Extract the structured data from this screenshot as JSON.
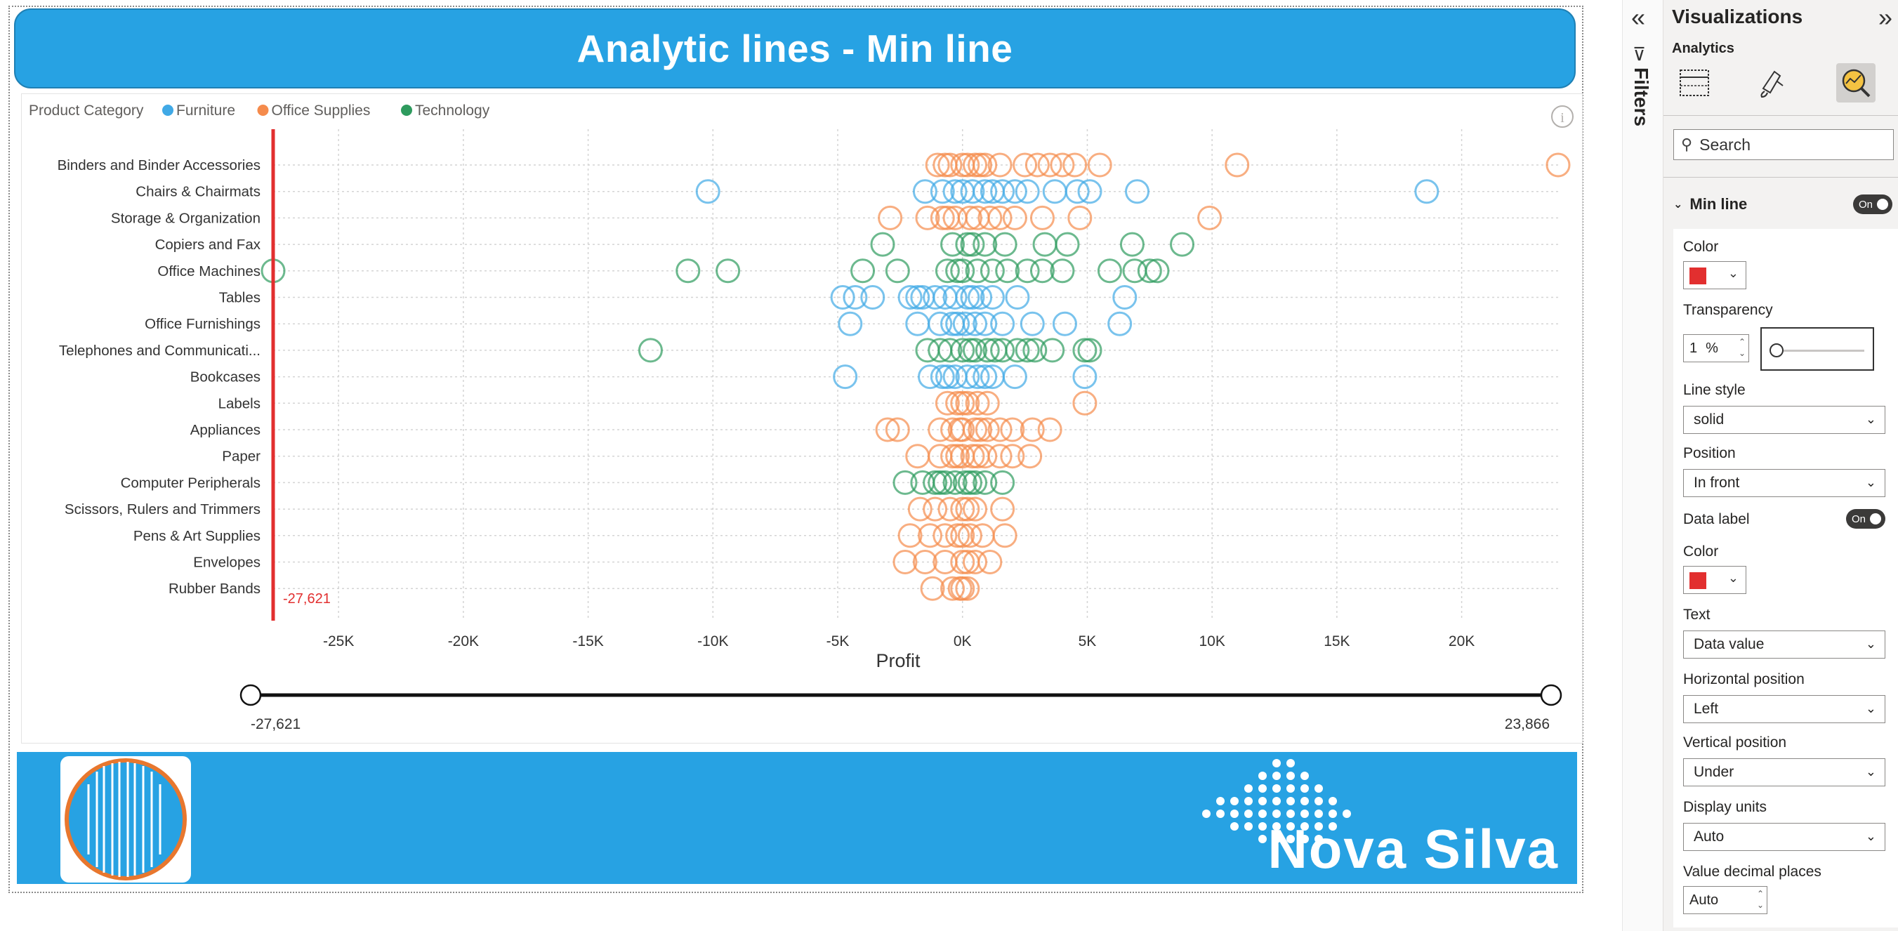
{
  "report": {
    "title": "Analytic lines - Min line",
    "brand": "Nova Silva"
  },
  "chart_data": {
    "type": "scatter",
    "legend_title": "Product Category",
    "legend": [
      {
        "name": "Furniture",
        "color": "#40a9e6"
      },
      {
        "name": "Office Supplies",
        "color": "#f58b4c"
      },
      {
        "name": "Technology",
        "color": "#2e9b5e"
      }
    ],
    "categories": [
      "Binders and Binder Accessories",
      "Chairs & Chairmats",
      "Storage & Organization",
      "Copiers and Fax",
      "Office Machines",
      "Tables",
      "Office Furnishings",
      "Telephones and Communicati...",
      "Bookcases",
      "Labels",
      "Appliances",
      "Paper",
      "Computer Peripherals",
      "Scissors, Rulers and Trimmers",
      "Pens & Art Supplies",
      "Envelopes",
      "Rubber Bands"
    ],
    "category_series": [
      "Office Supplies",
      "Furniture",
      "Office Supplies",
      "Technology",
      "Technology",
      "Furniture",
      "Furniture",
      "Technology",
      "Furniture",
      "Office Supplies",
      "Office Supplies",
      "Office Supplies",
      "Technology",
      "Office Supplies",
      "Office Supplies",
      "Office Supplies",
      "Office Supplies"
    ],
    "xlabel": "Profit",
    "x_ticks": [
      "-25K",
      "-20K",
      "-15K",
      "-10K",
      "-5K",
      "0K",
      "5K",
      "10K",
      "15K",
      "20K"
    ],
    "x_tick_values": [
      -25000,
      -20000,
      -15000,
      -10000,
      -5000,
      0,
      5000,
      10000,
      15000,
      20000
    ],
    "xlim": [
      -27621,
      23866
    ],
    "min_line": {
      "value": -27621,
      "label": "-27,621",
      "color": "#e22f2f"
    },
    "points": [
      [
        [
          -1000,
          0
        ],
        [
          -500,
          0
        ],
        [
          0,
          0
        ],
        [
          500,
          0
        ],
        [
          900,
          0
        ],
        [
          1500,
          0
        ],
        [
          2500,
          0
        ],
        [
          3500,
          0
        ],
        [
          4500,
          0
        ],
        [
          5500,
          0
        ],
        [
          11000,
          0
        ],
        [
          23866,
          0
        ],
        [
          -700,
          0
        ],
        [
          200,
          0
        ],
        [
          700,
          0
        ],
        [
          3000,
          0
        ],
        [
          4000,
          0
        ]
      ],
      [
        [
          -10200,
          0
        ],
        [
          -1500,
          0
        ],
        [
          -800,
          0
        ],
        [
          0,
          0
        ],
        [
          400,
          0
        ],
        [
          900,
          0
        ],
        [
          1600,
          0
        ],
        [
          2600,
          0
        ],
        [
          3700,
          0
        ],
        [
          4600,
          0
        ],
        [
          5100,
          0
        ],
        [
          7000,
          0
        ],
        [
          18600,
          0
        ],
        [
          -300,
          0
        ],
        [
          1200,
          0
        ],
        [
          2100,
          0
        ]
      ],
      [
        [
          -2900,
          0
        ],
        [
          -1400,
          0
        ],
        [
          -800,
          0
        ],
        [
          -300,
          0
        ],
        [
          300,
          0
        ],
        [
          1100,
          0
        ],
        [
          2100,
          0
        ],
        [
          3200,
          0
        ],
        [
          4700,
          0
        ],
        [
          9900,
          0
        ],
        [
          -600,
          0
        ],
        [
          600,
          0
        ],
        [
          1500,
          0
        ]
      ],
      [
        [
          -3200,
          0
        ],
        [
          -400,
          0
        ],
        [
          400,
          0
        ],
        [
          1700,
          0
        ],
        [
          3300,
          0
        ],
        [
          4200,
          0
        ],
        [
          6800,
          0
        ],
        [
          8800,
          0
        ],
        [
          200,
          0
        ],
        [
          900,
          0
        ]
      ],
      [
        [
          -27621,
          0
        ],
        [
          -11000,
          0
        ],
        [
          -9400,
          0
        ],
        [
          -4000,
          0
        ],
        [
          -2600,
          0
        ],
        [
          -600,
          0
        ],
        [
          0,
          0
        ],
        [
          600,
          0
        ],
        [
          1200,
          0
        ],
        [
          2600,
          0
        ],
        [
          3200,
          0
        ],
        [
          4000,
          0
        ],
        [
          5900,
          0
        ],
        [
          6900,
          0
        ],
        [
          7500,
          0
        ],
        [
          7800,
          0
        ],
        [
          1800,
          0
        ],
        [
          -200,
          0
        ]
      ],
      [
        [
          -4800,
          0
        ],
        [
          -3600,
          0
        ],
        [
          -2100,
          0
        ],
        [
          -1600,
          0
        ],
        [
          -1100,
          0
        ],
        [
          -700,
          0
        ],
        [
          -300,
          0
        ],
        [
          200,
          0
        ],
        [
          700,
          0
        ],
        [
          1200,
          0
        ],
        [
          2200,
          0
        ],
        [
          6500,
          0
        ],
        [
          -4300,
          0
        ],
        [
          -1800,
          0
        ],
        [
          400,
          0
        ]
      ],
      [
        [
          -4500,
          0
        ],
        [
          -1800,
          0
        ],
        [
          -900,
          0
        ],
        [
          -400,
          0
        ],
        [
          100,
          0
        ],
        [
          500,
          0
        ],
        [
          1600,
          0
        ],
        [
          2800,
          0
        ],
        [
          4100,
          0
        ],
        [
          6300,
          0
        ],
        [
          -200,
          0
        ],
        [
          900,
          0
        ]
      ],
      [
        [
          -12500,
          0
        ],
        [
          -1400,
          0
        ],
        [
          -900,
          0
        ],
        [
          -500,
          0
        ],
        [
          0,
          0
        ],
        [
          500,
          0
        ],
        [
          1000,
          0
        ],
        [
          1600,
          0
        ],
        [
          2200,
          0
        ],
        [
          2900,
          0
        ],
        [
          3600,
          0
        ],
        [
          4900,
          0
        ],
        [
          5100,
          0
        ],
        [
          300,
          0
        ],
        [
          1300,
          0
        ],
        [
          2600,
          0
        ]
      ],
      [
        [
          -4700,
          0
        ],
        [
          -1300,
          0
        ],
        [
          -800,
          0
        ],
        [
          -300,
          0
        ],
        [
          200,
          0
        ],
        [
          600,
          0
        ],
        [
          1200,
          0
        ],
        [
          2100,
          0
        ],
        [
          4900,
          0
        ],
        [
          -600,
          0
        ],
        [
          900,
          0
        ]
      ],
      [
        [
          -600,
          0
        ],
        [
          -200,
          0
        ],
        [
          200,
          0
        ],
        [
          600,
          0
        ],
        [
          1000,
          0
        ],
        [
          4900,
          0
        ],
        [
          0,
          0
        ]
      ],
      [
        [
          -3000,
          0
        ],
        [
          -2600,
          0
        ],
        [
          -900,
          0
        ],
        [
          -400,
          0
        ],
        [
          0,
          0
        ],
        [
          500,
          0
        ],
        [
          1000,
          0
        ],
        [
          1500,
          0
        ],
        [
          2000,
          0
        ],
        [
          2800,
          0
        ],
        [
          3500,
          0
        ],
        [
          -100,
          0
        ],
        [
          700,
          0
        ]
      ],
      [
        [
          -1800,
          0
        ],
        [
          -900,
          0
        ],
        [
          -400,
          0
        ],
        [
          0,
          0
        ],
        [
          400,
          0
        ],
        [
          900,
          0
        ],
        [
          1500,
          0
        ],
        [
          2000,
          0
        ],
        [
          2700,
          0
        ],
        [
          -200,
          0
        ],
        [
          600,
          0
        ]
      ],
      [
        [
          -2300,
          0
        ],
        [
          -1600,
          0
        ],
        [
          -1100,
          0
        ],
        [
          -700,
          0
        ],
        [
          -300,
          0
        ],
        [
          100,
          0
        ],
        [
          500,
          0
        ],
        [
          900,
          0
        ],
        [
          1600,
          0
        ],
        [
          -900,
          0
        ],
        [
          300,
          0
        ]
      ],
      [
        [
          -1700,
          0
        ],
        [
          -1100,
          0
        ],
        [
          -500,
          0
        ],
        [
          0,
          0
        ],
        [
          500,
          0
        ],
        [
          1600,
          0
        ],
        [
          200,
          0
        ]
      ],
      [
        [
          -2100,
          0
        ],
        [
          -1300,
          0
        ],
        [
          -700,
          0
        ],
        [
          -200,
          0
        ],
        [
          300,
          0
        ],
        [
          800,
          0
        ],
        [
          1700,
          0
        ],
        [
          0,
          0
        ]
      ],
      [
        [
          -2300,
          0
        ],
        [
          -1500,
          0
        ],
        [
          -700,
          0
        ],
        [
          0,
          0
        ],
        [
          500,
          0
        ],
        [
          1100,
          0
        ],
        [
          200,
          0
        ]
      ],
      [
        [
          -1200,
          0
        ],
        [
          -400,
          0
        ],
        [
          0,
          0
        ],
        [
          200,
          0
        ],
        [
          -100,
          0
        ]
      ]
    ],
    "slider": {
      "min_label": "-27,621",
      "max_label": "23,866"
    }
  },
  "filters": {
    "label": "Filters"
  },
  "viz": {
    "title": "Visualizations",
    "subtitle": "Analytics",
    "search_placeholder": "Search",
    "section": "Min line",
    "toggle_on": "On",
    "color_label": "Color",
    "transparency_label": "Transparency",
    "transparency_value": "1",
    "transparency_unit": "%",
    "transparency_level": 1,
    "line_style_label": "Line style",
    "line_style_value": "solid",
    "position_label": "Position",
    "position_value": "In front",
    "data_label_label": "Data label",
    "data_label_toggle": "On",
    "dl_color_label": "Color",
    "text_label": "Text",
    "text_value": "Data value",
    "hpos_label": "Horizontal position",
    "hpos_value": "Left",
    "vpos_label": "Vertical position",
    "vpos_value": "Under",
    "units_label": "Display units",
    "units_value": "Auto",
    "decimals_label": "Value decimal places",
    "decimals_value": "Auto",
    "accent_color": "#e22f2f"
  }
}
